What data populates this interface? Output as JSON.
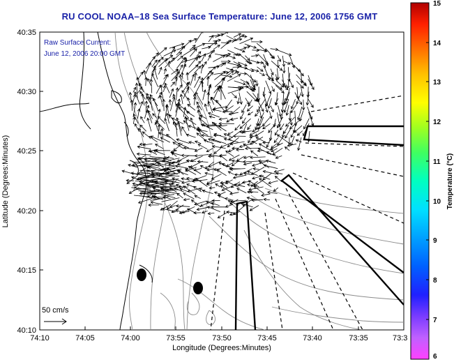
{
  "title": "RU COOL  NOAA–18  Sea Surface Temperature:  June 12, 2006 1756 GMT",
  "annotation": {
    "line1": "Raw Surface Current:",
    "line2": "June 12, 2006 20:00 GMT"
  },
  "scale_label": "50 cm/s",
  "chart_data": {
    "type": "map",
    "xlabel": "Longitude (Degrees:Minutes)",
    "ylabel": "Latitude (Degrees:Minutes)",
    "x_ticks": [
      "74:10",
      "74:05",
      "74:00",
      "73:55",
      "73:50",
      "73:45",
      "73:40",
      "73:35",
      "73:3"
    ],
    "y_ticks": [
      "40:35",
      "40:30",
      "40:25",
      "40:20",
      "40:15",
      "40:10"
    ],
    "colorbar": {
      "label": "Temperature (°C)",
      "ticks": [
        "15",
        "14",
        "13",
        "12",
        "11",
        "10",
        "9",
        "8",
        "7",
        "6"
      ],
      "range": [
        6,
        15
      ]
    }
  }
}
